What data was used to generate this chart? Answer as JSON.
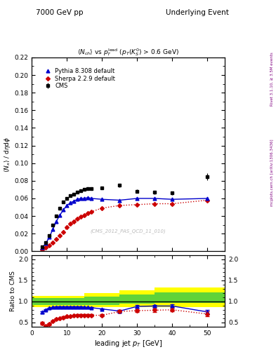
{
  "title_left": "7000 GeV pp",
  "title_right": "Underlying Event",
  "ylabel_main": "⟨N_x⟩ / dηdφ",
  "ylabel_ratio": "Ratio to CMS",
  "xlabel": "leading jet p_{T} [GeV]",
  "watermark": "(CMS_2012_PAS_QCD_11_010)",
  "right_label_top": "Rivet 3.1.10, ≥ 3.5M events",
  "right_label_bot": "mcplots.cern.ch [arXiv:1306.3436]",
  "cms_x": [
    3,
    4,
    5,
    6,
    7,
    8,
    9,
    10,
    11,
    12,
    13,
    14,
    15,
    16,
    17,
    20,
    25,
    30,
    35,
    40,
    50
  ],
  "cms_y": [
    0.005,
    0.01,
    0.018,
    0.03,
    0.04,
    0.049,
    0.056,
    0.06,
    0.063,
    0.065,
    0.067,
    0.069,
    0.07,
    0.071,
    0.071,
    0.072,
    0.075,
    0.068,
    0.067,
    0.066,
    0.085
  ],
  "cms_yerr": [
    0.001,
    0.001,
    0.001,
    0.001,
    0.001,
    0.001,
    0.001,
    0.001,
    0.001,
    0.001,
    0.001,
    0.001,
    0.001,
    0.001,
    0.001,
    0.001,
    0.002,
    0.002,
    0.002,
    0.002,
    0.004
  ],
  "pythia_x": [
    3,
    4,
    5,
    6,
    7,
    8,
    9,
    10,
    11,
    12,
    13,
    14,
    15,
    16,
    17,
    20,
    25,
    30,
    35,
    40,
    50
  ],
  "pythia_y": [
    0.004,
    0.009,
    0.016,
    0.025,
    0.034,
    0.041,
    0.047,
    0.052,
    0.055,
    0.057,
    0.059,
    0.06,
    0.06,
    0.061,
    0.06,
    0.059,
    0.058,
    0.06,
    0.06,
    0.059,
    0.06
  ],
  "sherpa_x": [
    3,
    4,
    5,
    6,
    7,
    8,
    9,
    10,
    11,
    12,
    13,
    14,
    15,
    16,
    17,
    20,
    25,
    30,
    35,
    40,
    50
  ],
  "sherpa_y": [
    0.002,
    0.004,
    0.007,
    0.01,
    0.014,
    0.018,
    0.022,
    0.027,
    0.031,
    0.034,
    0.037,
    0.039,
    0.041,
    0.043,
    0.045,
    0.049,
    0.052,
    0.053,
    0.054,
    0.054,
    0.058
  ],
  "ratio_pythia_x": [
    3,
    4,
    5,
    6,
    7,
    8,
    9,
    10,
    11,
    12,
    13,
    14,
    15,
    16,
    17,
    20,
    25,
    30,
    35,
    40,
    50
  ],
  "ratio_pythia_y": [
    0.74,
    0.8,
    0.84,
    0.86,
    0.87,
    0.87,
    0.87,
    0.87,
    0.87,
    0.87,
    0.87,
    0.87,
    0.86,
    0.86,
    0.85,
    0.82,
    0.77,
    0.88,
    0.89,
    0.89,
    0.75
  ],
  "ratio_pythia_yerr": [
    0.02,
    0.01,
    0.01,
    0.01,
    0.01,
    0.01,
    0.01,
    0.01,
    0.01,
    0.01,
    0.01,
    0.01,
    0.01,
    0.01,
    0.01,
    0.01,
    0.02,
    0.03,
    0.03,
    0.04,
    0.05
  ],
  "ratio_sherpa_x": [
    3,
    4,
    5,
    6,
    7,
    8,
    9,
    10,
    11,
    12,
    13,
    14,
    15,
    16,
    17,
    20,
    25,
    30,
    35,
    40,
    50
  ],
  "ratio_sherpa_y": [
    0.48,
    0.42,
    0.46,
    0.53,
    0.58,
    0.6,
    0.62,
    0.64,
    0.65,
    0.66,
    0.67,
    0.67,
    0.67,
    0.67,
    0.67,
    0.67,
    0.76,
    0.78,
    0.79,
    0.8,
    0.7
  ],
  "ratio_sherpa_yerr": [
    0.03,
    0.02,
    0.02,
    0.02,
    0.02,
    0.02,
    0.02,
    0.02,
    0.02,
    0.02,
    0.02,
    0.02,
    0.02,
    0.02,
    0.02,
    0.02,
    0.03,
    0.04,
    0.04,
    0.04,
    0.06
  ],
  "band_x_edges": [
    0,
    6,
    15,
    25,
    35,
    55
  ],
  "band_yellow_lo": [
    0.87,
    0.87,
    0.87,
    0.87,
    0.87,
    0.87
  ],
  "band_yellow_hi": [
    1.13,
    1.13,
    1.2,
    1.27,
    1.33,
    1.4
  ],
  "band_green_lo": [
    0.92,
    0.92,
    0.92,
    0.95,
    0.97,
    0.97
  ],
  "band_green_hi": [
    1.08,
    1.08,
    1.12,
    1.17,
    1.22,
    1.28
  ],
  "ylim_main": [
    0.0,
    0.22
  ],
  "ylim_ratio": [
    0.4,
    2.1
  ],
  "xlim": [
    0,
    55
  ],
  "cms_color": "#000000",
  "pythia_color": "#0000cc",
  "sherpa_color": "#cc0000",
  "band_yellow_color": "#ffff00",
  "band_green_color": "#44cc44"
}
